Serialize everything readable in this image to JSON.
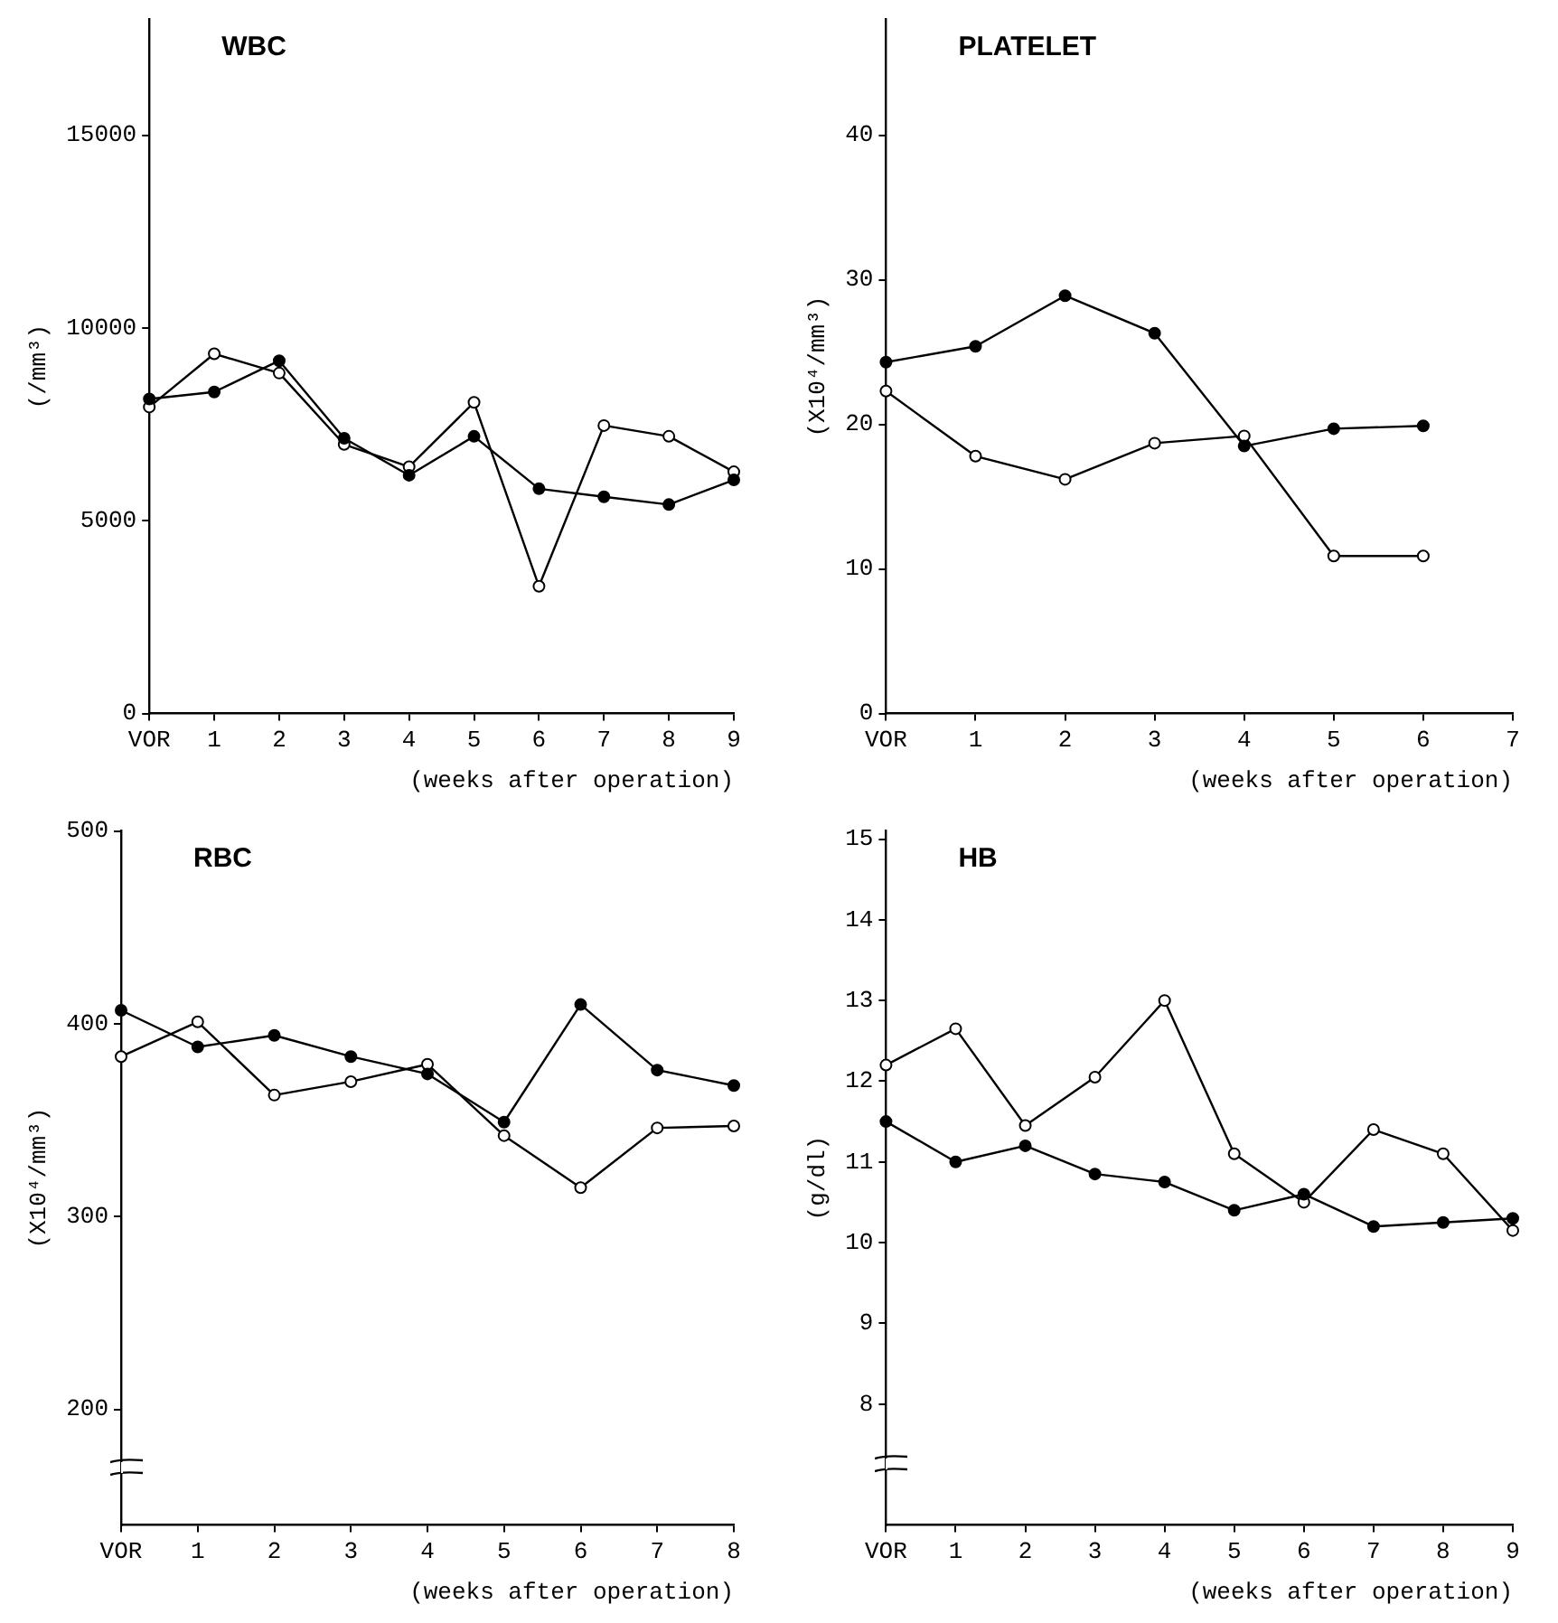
{
  "chart_data": [
    {
      "type": "line",
      "title": "WBC",
      "ylabel": "(/mm³)",
      "xlabel": "(weeks after operation)",
      "categories": [
        "VOR",
        "1",
        "2",
        "3",
        "4",
        "5",
        "6",
        "7",
        "8",
        "9"
      ],
      "ylim": [
        0,
        18000
      ],
      "yticks": [
        0,
        5000,
        10000,
        15000
      ],
      "grid": false,
      "legend": false,
      "marker": "circle",
      "line_style": "solid",
      "series": [
        {
          "color": "#000000",
          "values": [
            8160,
            8340,
            9150,
            7140,
            6180,
            7190,
            5830,
            5620,
            5420,
            6060
          ]
        },
        {
          "color": "#000000",
          "values": [
            7950,
            9330,
            8830,
            6980,
            6400,
            8070,
            3300,
            7470,
            7190,
            6270
          ]
        }
      ]
    },
    {
      "type": "line",
      "title": "PLATELET",
      "ylabel": "(X10⁴/mm³)",
      "xlabel": "(weeks after operation)",
      "categories": [
        "VOR",
        "1",
        "2",
        "3",
        "4",
        "5",
        "6",
        "7"
      ],
      "ylim": [
        0,
        48
      ],
      "yticks": [
        0,
        10,
        20,
        30,
        40
      ],
      "grid": false,
      "legend": false,
      "marker": "circle",
      "line_style": "solid",
      "series": [
        {
          "color": "#000000",
          "values": [
            24.3,
            25.4,
            28.9,
            26.3,
            18.5,
            19.7,
            19.9,
            null
          ]
        },
        {
          "color": "#000000",
          "values": [
            22.3,
            17.8,
            16.2,
            18.7,
            19.2,
            10.9,
            10.9,
            null
          ]
        }
      ]
    },
    {
      "type": "line",
      "title": "RBC",
      "ylabel": "(X10⁴/mm³)",
      "xlabel": "(weeks after operation)",
      "categories": [
        "VOR",
        "1",
        "2",
        "3",
        "4",
        "5",
        "6",
        "7",
        "8"
      ],
      "ylim": [
        140,
        500
      ],
      "yticks": [
        200,
        300,
        400,
        500
      ],
      "grid": false,
      "legend": false,
      "marker": "circle",
      "line_style": "solid",
      "series": [
        {
          "color": "#000000",
          "values": [
            407,
            388,
            394,
            383,
            374,
            349,
            410,
            376,
            368
          ]
        },
        {
          "color": "#000000",
          "values": [
            383,
            401,
            363,
            370,
            379,
            342,
            315,
            346,
            347
          ]
        }
      ]
    },
    {
      "type": "line",
      "title": "HB",
      "ylabel": "(g/dl)",
      "xlabel": "(weeks after operation)",
      "categories": [
        "VOR",
        "1",
        "2",
        "3",
        "4",
        "5",
        "6",
        "7",
        "8",
        "9"
      ],
      "ylim": [
        6.5,
        15.1
      ],
      "yticks": [
        8,
        9,
        10,
        11,
        12,
        13,
        14,
        15
      ],
      "grid": false,
      "legend": false,
      "marker": "circle",
      "line_style": "solid",
      "series": [
        {
          "color": "#000000",
          "values": [
            11.5,
            11.0,
            11.2,
            10.85,
            10.75,
            10.4,
            10.6,
            10.2,
            10.25,
            10.3
          ]
        },
        {
          "color": "#000000",
          "values": [
            12.2,
            12.65,
            11.45,
            12.05,
            13.0,
            11.1,
            10.5,
            11.4,
            11.1,
            10.15
          ]
        }
      ]
    }
  ]
}
